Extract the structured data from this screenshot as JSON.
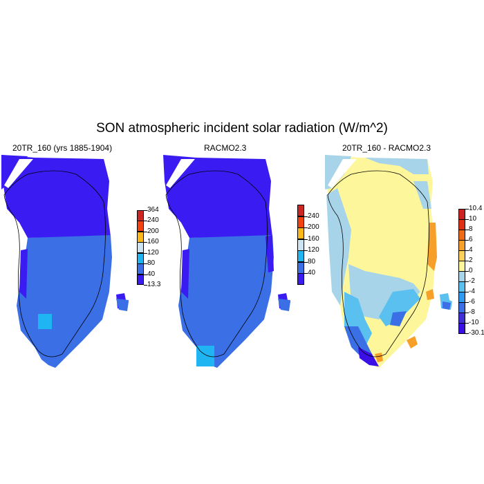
{
  "title": "SON atmospheric incident solar radiation (W/m^2)",
  "panels": [
    {
      "title": "20TR_160 (yrs 1885-1904)",
      "colorbar": {
        "colors": [
          "#3a1cf2",
          "#3b6fe6",
          "#1fb5f2",
          "#cde3f1",
          "#fcb818",
          "#f3410f",
          "#cc2624"
        ],
        "labels": [
          "13.3",
          "40",
          "80",
          "120",
          "160",
          "200",
          "240",
          "364"
        ]
      }
    },
    {
      "title": "RACMO2.3",
      "colorbar": {
        "colors": [
          "#3a1cf2",
          "#3b6fe6",
          "#1fb5f2",
          "#cde3f1",
          "#fcb818",
          "#f3410f",
          "#cc2624"
        ],
        "labels": [
          "",
          "40",
          "80",
          "120",
          "160",
          "200",
          "240",
          ""
        ]
      }
    },
    {
      "title": "20TR_160 - RACMO2.3",
      "colorbar": {
        "colors": [
          "#3a10e6",
          "#4030d8",
          "#3b6fe6",
          "#2f9aef",
          "#5ac0f0",
          "#a8d4ea",
          "#fef69a",
          "#fdd05a",
          "#f6a02a",
          "#ee6a16",
          "#e03015",
          "#cc2222"
        ],
        "labels": [
          "-30.1",
          "-10",
          "-8",
          "-6",
          "-4",
          "-2",
          "0",
          "2",
          "4",
          "6",
          "8",
          "10",
          "10.4"
        ]
      }
    }
  ],
  "colors": {
    "dark_blue": "#3a1cf2",
    "mid_blue": "#3b6fe6",
    "light_blue": "#1fb5f2",
    "pale_yellow": "#fef69a",
    "pale_blue": "#a8d4ea",
    "orange": "#f6a02a"
  }
}
